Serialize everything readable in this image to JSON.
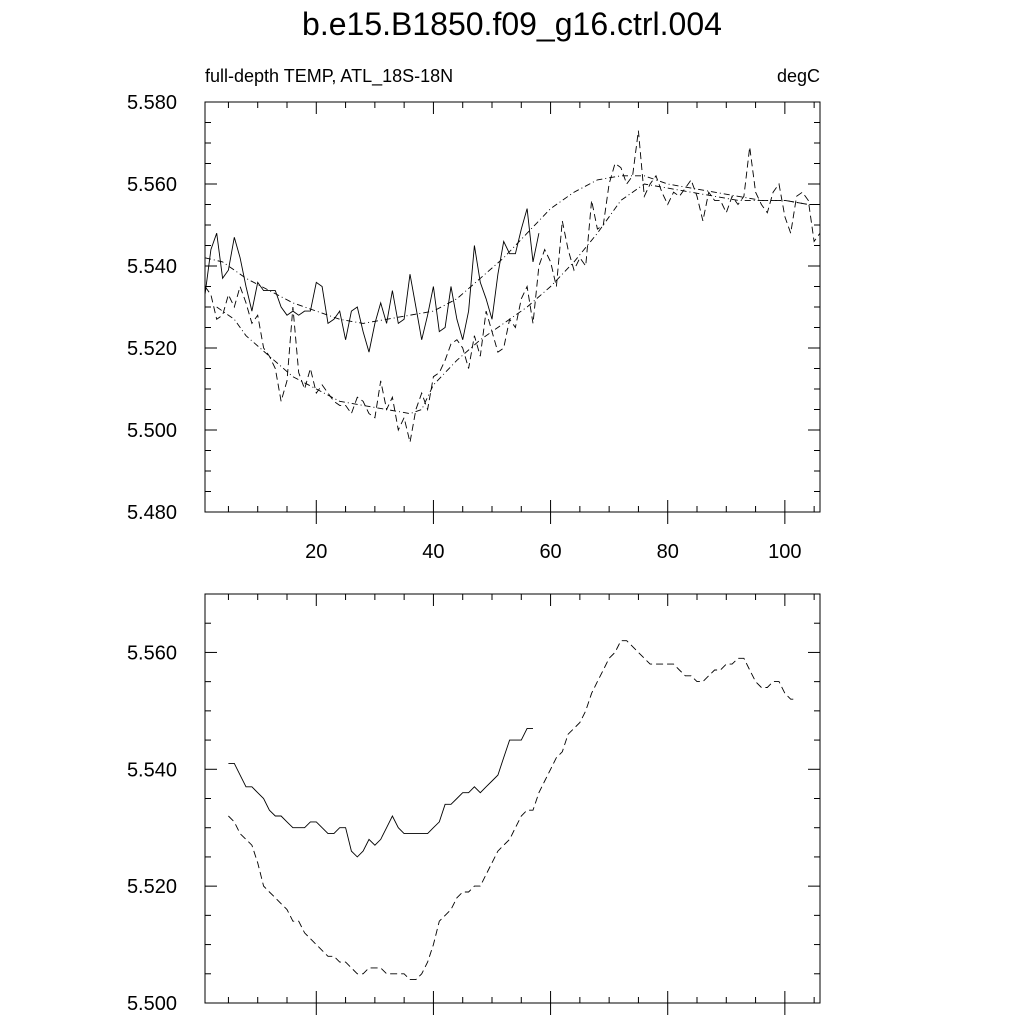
{
  "title": "b.e15.B1850.f09_g16.ctrl.004",
  "top_panel": {
    "left_label": "full-depth TEMP, ATL_18S-18N",
    "right_label": "degC"
  },
  "colors": {
    "axes": "#000000",
    "series": "#000000",
    "background": "#ffffff"
  },
  "chart_data": [
    {
      "type": "line",
      "panel": "top",
      "xlim": [
        1,
        106
      ],
      "ylim": [
        5.48,
        5.58
      ],
      "yticks": [
        "5.480",
        "5.500",
        "5.520",
        "5.540",
        "5.560",
        "5.580"
      ],
      "xticks": [
        "20",
        "40",
        "60",
        "80",
        "100"
      ],
      "grid": false,
      "series": [
        {
          "style": "solid",
          "x": [
            1,
            2,
            3,
            4,
            5,
            6,
            7,
            8,
            9,
            10,
            11,
            12,
            13,
            14,
            15,
            16,
            17,
            18,
            19,
            20,
            21,
            22,
            23,
            24,
            25,
            26,
            27,
            28,
            29,
            30,
            31,
            32,
            33,
            34,
            35,
            36,
            37,
            38,
            39,
            40,
            41,
            42,
            43,
            44,
            45,
            46,
            47,
            48,
            49,
            50,
            51,
            52,
            53,
            54,
            55,
            56,
            57,
            58
          ],
          "y": [
            5.533,
            5.544,
            5.548,
            5.537,
            5.539,
            5.547,
            5.542,
            5.535,
            5.529,
            5.536,
            5.534,
            5.534,
            5.534,
            5.53,
            5.528,
            5.529,
            5.528,
            5.529,
            5.529,
            5.536,
            5.535,
            5.526,
            5.527,
            5.529,
            5.522,
            5.529,
            5.53,
            5.524,
            5.519,
            5.526,
            5.531,
            5.526,
            5.534,
            5.526,
            5.527,
            5.538,
            5.53,
            5.522,
            5.528,
            5.535,
            5.524,
            5.525,
            5.535,
            5.527,
            5.522,
            5.529,
            5.545,
            5.536,
            5.532,
            5.527,
            5.538,
            5.546,
            5.543,
            5.543,
            5.549,
            5.554,
            5.541,
            5.548
          ]
        },
        {
          "style": "dashed",
          "x": [
            1,
            2,
            3,
            4,
            5,
            6,
            7,
            8,
            9,
            10,
            11,
            12,
            13,
            14,
            15,
            16,
            17,
            18,
            19,
            20,
            21,
            22,
            23,
            24,
            25,
            26,
            27,
            28,
            29,
            30,
            31,
            32,
            33,
            34,
            35,
            36,
            37,
            38,
            39,
            40,
            41,
            42,
            43,
            44,
            45,
            46,
            47,
            48,
            49,
            50,
            51,
            52,
            53,
            54,
            55,
            56,
            57,
            58,
            59,
            60,
            61,
            62,
            63,
            64,
            65,
            66,
            67,
            68,
            69,
            70,
            71,
            72,
            73,
            74,
            75,
            76,
            77,
            78,
            79,
            80,
            81,
            82,
            83,
            84,
            85,
            86,
            87,
            88,
            89,
            90,
            91,
            92,
            93,
            94,
            95,
            96,
            97,
            98,
            99,
            100,
            101,
            102,
            103,
            104,
            105,
            106
          ],
          "y": [
            5.535,
            5.533,
            5.527,
            5.528,
            5.533,
            5.53,
            5.535,
            5.531,
            5.526,
            5.528,
            5.52,
            5.518,
            5.515,
            5.507,
            5.512,
            5.53,
            5.514,
            5.51,
            5.515,
            5.509,
            5.511,
            5.509,
            5.507,
            5.506,
            5.506,
            5.504,
            5.508,
            5.507,
            5.504,
            5.503,
            5.512,
            5.505,
            5.508,
            5.5,
            5.503,
            5.497,
            5.505,
            5.509,
            5.505,
            5.513,
            5.514,
            5.517,
            5.521,
            5.522,
            5.52,
            5.515,
            5.523,
            5.518,
            5.529,
            5.524,
            5.519,
            5.52,
            5.527,
            5.525,
            5.532,
            5.535,
            5.526,
            5.54,
            5.544,
            5.541,
            5.535,
            5.551,
            5.544,
            5.539,
            5.542,
            5.54,
            5.556,
            5.549,
            5.55,
            5.56,
            5.565,
            5.564,
            5.56,
            5.562,
            5.573,
            5.557,
            5.56,
            5.562,
            5.558,
            5.555,
            5.558,
            5.557,
            5.559,
            5.561,
            5.557,
            5.551,
            5.558,
            5.556,
            5.556,
            5.553,
            5.557,
            5.555,
            5.557,
            5.569,
            5.558,
            5.555,
            5.553,
            5.558,
            5.56,
            5.552,
            5.548,
            5.557,
            5.558,
            5.556,
            5.546,
            5.548
          ]
        },
        {
          "style": "dash-dot",
          "x": [
            1,
            4,
            6,
            8,
            12,
            16,
            20,
            24,
            28,
            32,
            36,
            40,
            44,
            48,
            52,
            56,
            60,
            64,
            68,
            72,
            76,
            80,
            84,
            88,
            92,
            96,
            100,
            104,
            106
          ],
          "y": [
            5.542,
            5.541,
            5.539,
            5.537,
            5.534,
            5.531,
            5.529,
            5.527,
            5.526,
            5.527,
            5.528,
            5.529,
            5.532,
            5.537,
            5.542,
            5.548,
            5.554,
            5.558,
            5.561,
            5.562,
            5.562,
            5.56,
            5.559,
            5.558,
            5.557,
            5.556,
            5.556,
            5.555,
            5.555
          ]
        },
        {
          "style": "dash-dot",
          "x": [
            3,
            6,
            8,
            12,
            16,
            20,
            24,
            28,
            32,
            36,
            38,
            40,
            44,
            48,
            52,
            56,
            60,
            64,
            68,
            72,
            76,
            80,
            84,
            88,
            92,
            96,
            100,
            104,
            106
          ],
          "y": [
            5.53,
            5.527,
            5.523,
            5.518,
            5.513,
            5.51,
            5.507,
            5.506,
            5.505,
            5.504,
            5.505,
            5.511,
            5.517,
            5.522,
            5.526,
            5.53,
            5.535,
            5.541,
            5.548,
            5.556,
            5.56,
            5.559,
            5.558,
            5.557,
            5.556,
            5.556,
            5.556,
            5.555,
            5.555
          ]
        }
      ]
    },
    {
      "type": "line",
      "panel": "bottom",
      "xlim": [
        1,
        106
      ],
      "ylim": [
        5.5,
        5.57
      ],
      "yticks": [
        "5.500",
        "5.520",
        "5.540",
        "5.560"
      ],
      "xticks": [],
      "grid": false,
      "series": [
        {
          "style": "solid",
          "x": [
            5,
            6,
            7,
            8,
            9,
            10,
            11,
            12,
            13,
            14,
            15,
            16,
            17,
            18,
            19,
            20,
            21,
            22,
            23,
            24,
            25,
            26,
            27,
            28,
            29,
            30,
            31,
            32,
            33,
            34,
            35,
            36,
            37,
            38,
            39,
            40,
            41,
            42,
            43,
            44,
            45,
            46,
            47,
            48,
            49,
            50,
            51,
            52,
            53,
            54,
            55,
            56,
            57
          ],
          "y": [
            5.541,
            5.541,
            5.539,
            5.537,
            5.537,
            5.536,
            5.535,
            5.533,
            5.532,
            5.532,
            5.531,
            5.53,
            5.53,
            5.53,
            5.531,
            5.531,
            5.53,
            5.529,
            5.529,
            5.53,
            5.53,
            5.526,
            5.525,
            5.526,
            5.528,
            5.527,
            5.528,
            5.53,
            5.532,
            5.53,
            5.529,
            5.529,
            5.529,
            5.529,
            5.529,
            5.53,
            5.531,
            5.534,
            5.534,
            5.535,
            5.536,
            5.536,
            5.537,
            5.536,
            5.537,
            5.538,
            5.539,
            5.542,
            5.545,
            5.545,
            5.545,
            5.547,
            5.547
          ]
        },
        {
          "style": "dashed",
          "x": [
            5,
            6,
            7,
            8,
            9,
            10,
            11,
            12,
            13,
            14,
            15,
            16,
            17,
            18,
            19,
            20,
            21,
            22,
            23,
            24,
            25,
            26,
            27,
            28,
            29,
            30,
            31,
            32,
            33,
            34,
            35,
            36,
            37,
            38,
            39,
            40,
            41,
            42,
            43,
            44,
            45,
            46,
            47,
            48,
            49,
            50,
            51,
            52,
            53,
            54,
            55,
            56,
            57,
            58,
            59,
            60,
            61,
            62,
            63,
            64,
            65,
            66,
            67,
            68,
            69,
            70,
            71,
            72,
            73,
            74,
            75,
            76,
            77,
            78,
            79,
            80,
            81,
            82,
            83,
            84,
            85,
            86,
            87,
            88,
            89,
            90,
            91,
            92,
            93,
            94,
            95,
            96,
            97,
            98,
            99,
            100,
            101,
            102
          ],
          "y": [
            5.532,
            5.531,
            5.529,
            5.528,
            5.527,
            5.524,
            5.52,
            5.519,
            5.518,
            5.517,
            5.516,
            5.514,
            5.514,
            5.512,
            5.511,
            5.51,
            5.509,
            5.508,
            5.508,
            5.507,
            5.507,
            5.506,
            5.505,
            5.505,
            5.506,
            5.506,
            5.506,
            5.505,
            5.505,
            5.505,
            5.505,
            5.504,
            5.504,
            5.505,
            5.507,
            5.51,
            5.514,
            5.515,
            5.516,
            5.518,
            5.519,
            5.519,
            5.52,
            5.52,
            5.522,
            5.524,
            5.526,
            5.527,
            5.528,
            5.53,
            5.532,
            5.533,
            5.533,
            5.536,
            5.538,
            5.54,
            5.542,
            5.543,
            5.546,
            5.547,
            5.548,
            5.55,
            5.553,
            5.555,
            5.557,
            5.559,
            5.56,
            5.562,
            5.562,
            5.561,
            5.56,
            5.559,
            5.558,
            5.558,
            5.558,
            5.558,
            5.558,
            5.557,
            5.556,
            5.556,
            5.555,
            5.555,
            5.556,
            5.557,
            5.557,
            5.558,
            5.558,
            5.559,
            5.559,
            5.557,
            5.555,
            5.554,
            5.554,
            5.555,
            5.555,
            5.553,
            5.552,
            5.552
          ]
        }
      ]
    }
  ]
}
